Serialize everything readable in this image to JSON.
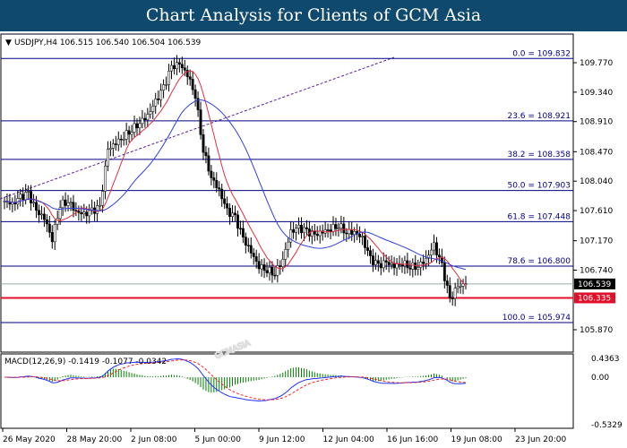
{
  "title": "Chart Analysis for Clients of GCM Asia",
  "chart_data": {
    "type": "candlestick",
    "symbol_info": "USDJPY,H4  106.515 106.540 106.504 106.539",
    "price_ticks": [
      "109.770",
      "109.340",
      "108.910",
      "108.470",
      "108.040",
      "107.610",
      "107.170",
      "106.740",
      "105.870"
    ],
    "ylim": [
      105.87,
      109.77
    ],
    "close_path": [
      107.75,
      107.7,
      107.8,
      107.85,
      107.6,
      107.5,
      107.2,
      107.7,
      107.75,
      107.6,
      107.55,
      107.6,
      107.65,
      108.5,
      108.6,
      108.7,
      108.8,
      108.9,
      109.0,
      109.2,
      109.4,
      109.7,
      109.75,
      109.6,
      109.3,
      108.5,
      108.1,
      107.9,
      107.6,
      107.5,
      107.2,
      107.0,
      106.8,
      106.75,
      106.7,
      106.9,
      107.3,
      107.35,
      107.3,
      107.25,
      107.3,
      107.35,
      107.4,
      107.3,
      107.3,
      107.2,
      106.9,
      106.8,
      106.85,
      106.8,
      106.85,
      106.8,
      106.8,
      106.9,
      107.1,
      106.8,
      106.3,
      106.5,
      106.54
    ],
    "fibonacci": [
      {
        "label": "0.0 = 109.832",
        "price": 109.832
      },
      {
        "label": "23.6 = 108.921",
        "price": 108.921
      },
      {
        "label": "38.2 = 108.358",
        "price": 108.358
      },
      {
        "label": "50.0 = 107.903",
        "price": 107.903
      },
      {
        "label": "61.8 = 107.448",
        "price": 107.448
      },
      {
        "label": "78.6  = 106.800",
        "price": 106.8
      },
      {
        "label": "100.0 = 105.974",
        "price": 105.974
      }
    ],
    "current_price": {
      "label": "106.539",
      "price": 106.539
    },
    "support_line": {
      "label": "106.335",
      "price": 106.335,
      "color": "#e0102a"
    },
    "macd": {
      "label": "MACD(12,26,9) -0.1419 -0.1077 -0.0342",
      "ticks": [
        "0.4363",
        "0.00",
        "-0.5329"
      ],
      "ylim": [
        -0.5329,
        0.4363
      ]
    },
    "x_ticks": [
      "26 May 2020",
      "28 May 20:00",
      "2 Jun 08:00",
      "5 Jun 00:00",
      "9 Jun 12:00",
      "12 Jun 04:00",
      "16 Jun 16:00",
      "19 Jun 08:00",
      "23 Jun 20:00"
    ],
    "colors": {
      "fib": "#000080",
      "fast_ma": "#e03040",
      "slow_ma": "#3040e0",
      "histogram": "#008000",
      "signal": "#ff2020",
      "trendline": "#6020a0"
    },
    "watermark": "GCMASIA"
  }
}
